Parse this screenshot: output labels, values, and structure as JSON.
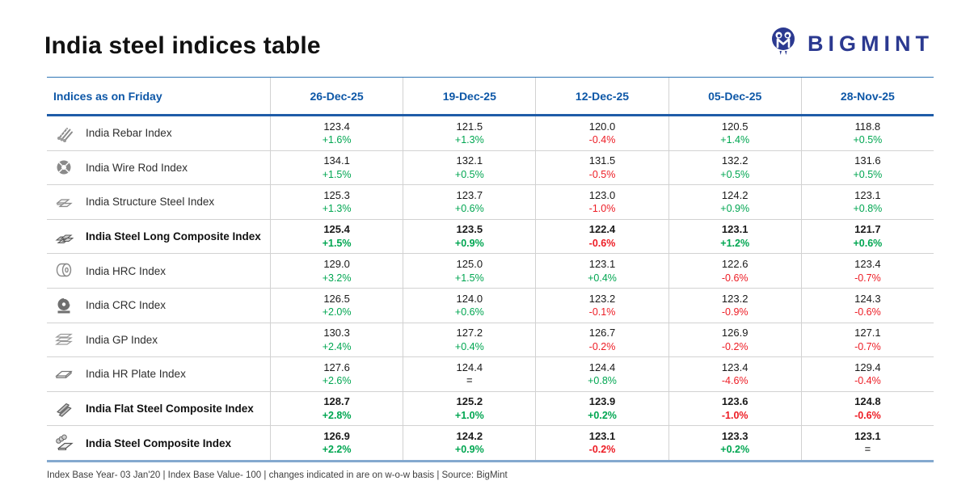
{
  "title": "India steel indices table",
  "logo": {
    "text": "BIGMINT"
  },
  "table": {
    "header_label": "Indices as on Friday",
    "dates": [
      "26-Dec-25",
      "19-Dec-25",
      "12-Dec-25",
      "05-Dec-25",
      "28-Nov-25"
    ],
    "rows": [
      {
        "icon": "rebar-icon",
        "name": "India Rebar Index",
        "bold": false,
        "values": [
          "123.4",
          "121.5",
          "120.0",
          "120.5",
          "118.8"
        ],
        "changes": [
          "+1.6%",
          "+1.3%",
          "-0.4%",
          "+1.4%",
          "+0.5%"
        ]
      },
      {
        "icon": "wire-rod-coil-icon",
        "name": "India Wire Rod Index",
        "bold": false,
        "values": [
          "134.1",
          "132.1",
          "131.5",
          "132.2",
          "131.6"
        ],
        "changes": [
          "+1.5%",
          "+0.5%",
          "-0.5%",
          "+0.5%",
          "+0.5%"
        ]
      },
      {
        "icon": "structure-steel-icon",
        "name": "India Structure Steel Index",
        "bold": false,
        "values": [
          "125.3",
          "123.7",
          "123.0",
          "124.2",
          "123.1"
        ],
        "changes": [
          "+1.3%",
          "+0.6%",
          "-1.0%",
          "+0.9%",
          "+0.8%"
        ]
      },
      {
        "icon": "long-steel-stack-icon",
        "name": "India Steel Long Composite Index",
        "bold": true,
        "values": [
          "125.4",
          "123.5",
          "122.4",
          "123.1",
          "121.7"
        ],
        "changes": [
          "+1.5%",
          "+0.9%",
          "-0.6%",
          "+1.2%",
          "+0.6%"
        ]
      },
      {
        "icon": "hrc-coil-icon",
        "name": "India HRC Index",
        "bold": false,
        "values": [
          "129.0",
          "125.0",
          "123.1",
          "122.6",
          "123.4"
        ],
        "changes": [
          "+3.2%",
          "+1.5%",
          "+0.4%",
          "-0.6%",
          "-0.7%"
        ]
      },
      {
        "icon": "crc-coil-icon",
        "name": "India CRC Index",
        "bold": false,
        "values": [
          "126.5",
          "124.0",
          "123.2",
          "123.2",
          "124.3"
        ],
        "changes": [
          "+2.0%",
          "+0.6%",
          "-0.1%",
          "-0.9%",
          "-0.6%"
        ]
      },
      {
        "icon": "gp-sheets-icon",
        "name": "India GP Index",
        "bold": false,
        "values": [
          "130.3",
          "127.2",
          "126.7",
          "126.9",
          "127.1"
        ],
        "changes": [
          "+2.4%",
          "+0.4%",
          "-0.2%",
          "-0.2%",
          "-0.7%"
        ]
      },
      {
        "icon": "hr-plate-icon",
        "name": "India HR Plate Index",
        "bold": false,
        "values": [
          "127.6",
          "124.4",
          "124.4",
          "123.4",
          "129.4"
        ],
        "changes": [
          "+2.6%",
          "=",
          "+0.8%",
          "-4.6%",
          "-0.4%"
        ]
      },
      {
        "icon": "flat-steel-stack-icon",
        "name": "India Flat Steel Composite Index",
        "bold": true,
        "values": [
          "128.7",
          "125.2",
          "123.9",
          "123.6",
          "124.8"
        ],
        "changes": [
          "+2.8%",
          "+1.0%",
          "+0.2%",
          "-1.0%",
          "-0.6%"
        ]
      },
      {
        "icon": "steel-composite-icon",
        "name": "India Steel Composite Index",
        "bold": true,
        "values": [
          "126.9",
          "124.2",
          "123.1",
          "123.3",
          "123.1"
        ],
        "changes": [
          "+2.2%",
          "+0.9%",
          "-0.2%",
          "+0.2%",
          "="
        ]
      }
    ]
  },
  "footer": "Index Base Year- 03 Jan'20 | Index Base Value- 100 | changes indicated in are on w-o-w basis | Source: BigMint",
  "colors": {
    "positive": "#00a651",
    "negative": "#ed1c24",
    "neutral": "#555555",
    "header_blue": "#0d57a7",
    "brand_navy": "#2b3990"
  }
}
